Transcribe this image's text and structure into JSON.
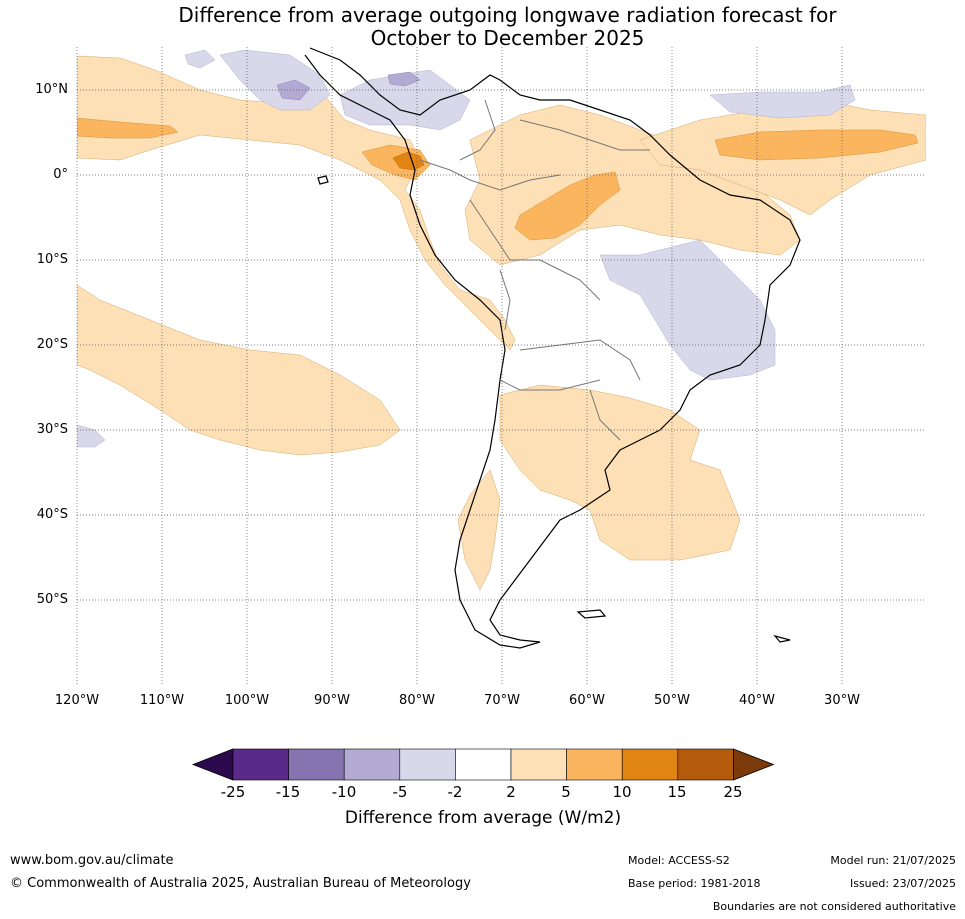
{
  "title": {
    "line1": "Difference from average outgoing longwave radiation forecast for",
    "line2": "October to December 2025"
  },
  "map": {
    "lat_labels": [
      "10°N",
      "0°",
      "10°S",
      "20°S",
      "30°S",
      "40°S",
      "50°S"
    ],
    "lon_labels": [
      "120°W",
      "110°W",
      "100°W",
      "90°W",
      "80°W",
      "70°W",
      "60°W",
      "50°W",
      "40°W",
      "30°W"
    ]
  },
  "legend": {
    "ticks": [
      "-25",
      "-15",
      "-10",
      "-5",
      "-2",
      "2",
      "5",
      "10",
      "15",
      "25"
    ],
    "colors": [
      "#2d0a4e",
      "#5a2a8a",
      "#8574b0",
      "#b3aad3",
      "#d8d8ea",
      "#ffffff",
      "#fde0b6",
      "#fbb55f",
      "#e08414",
      "#b35a0c",
      "#7a3a0a"
    ],
    "label": "Difference from average (W/m2)"
  },
  "footer": {
    "site": "www.bom.gov.au/climate",
    "copyright": "© Commonwealth of Australia 2025, Australian Bureau of Meteorology",
    "model": "Model: ACCESS-S2",
    "base_period": "Base period: 1981-2018",
    "model_run": "Model run: 21/07/2025",
    "issued": "Issued: 23/07/2025",
    "disclaimer": "Boundaries are not considered authoritative"
  }
}
